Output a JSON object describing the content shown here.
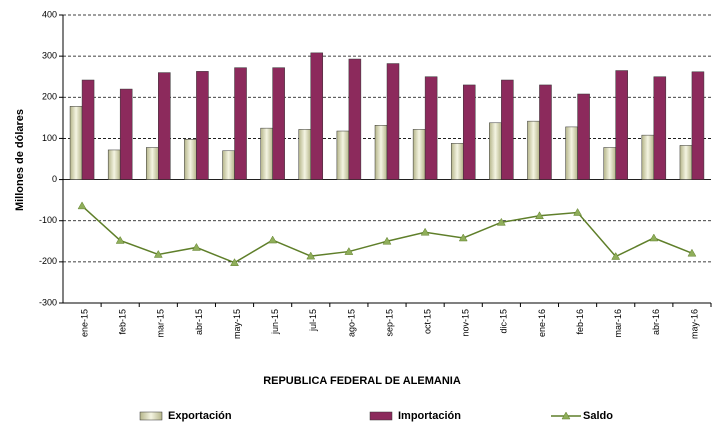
{
  "chart_data": {
    "type": "combo",
    "title": "REPUBLICA FEDERAL DE ALEMANIA",
    "y_label": "Millones de dólares",
    "categories": [
      "ene-15",
      "feb-15",
      "mar-15",
      "abr-15",
      "may-15",
      "jun-15",
      "jul-15",
      "ago-15",
      "sep-15",
      "oct-15",
      "nov-15",
      "dic-15",
      "ene-16",
      "feb-16",
      "mar-16",
      "abr-16",
      "may-16"
    ],
    "series": [
      {
        "name": "Exportación",
        "type": "bar",
        "color": "#b5b58a",
        "values": [
          178,
          72,
          78,
          98,
          70,
          125,
          122,
          118,
          132,
          122,
          88,
          138,
          142,
          128,
          78,
          108,
          83
        ]
      },
      {
        "name": "Importación",
        "type": "bar",
        "color": "#8c2a5c",
        "values": [
          242,
          220,
          260,
          263,
          272,
          272,
          308,
          293,
          282,
          250,
          230,
          242,
          230,
          208,
          265,
          250,
          262
        ]
      },
      {
        "name": "Saldo",
        "type": "line",
        "color": "#5f7f2a",
        "values": [
          -64,
          -148,
          -182,
          -165,
          -202,
          -147,
          -186,
          -175,
          -150,
          -128,
          -142,
          -104,
          -88,
          -80,
          -187,
          -142,
          -179
        ]
      }
    ],
    "ylim": [
      -300,
      400
    ],
    "yticks": [
      -300,
      -200,
      -100,
      0,
      100,
      200,
      300,
      400
    ],
    "grid": true
  }
}
